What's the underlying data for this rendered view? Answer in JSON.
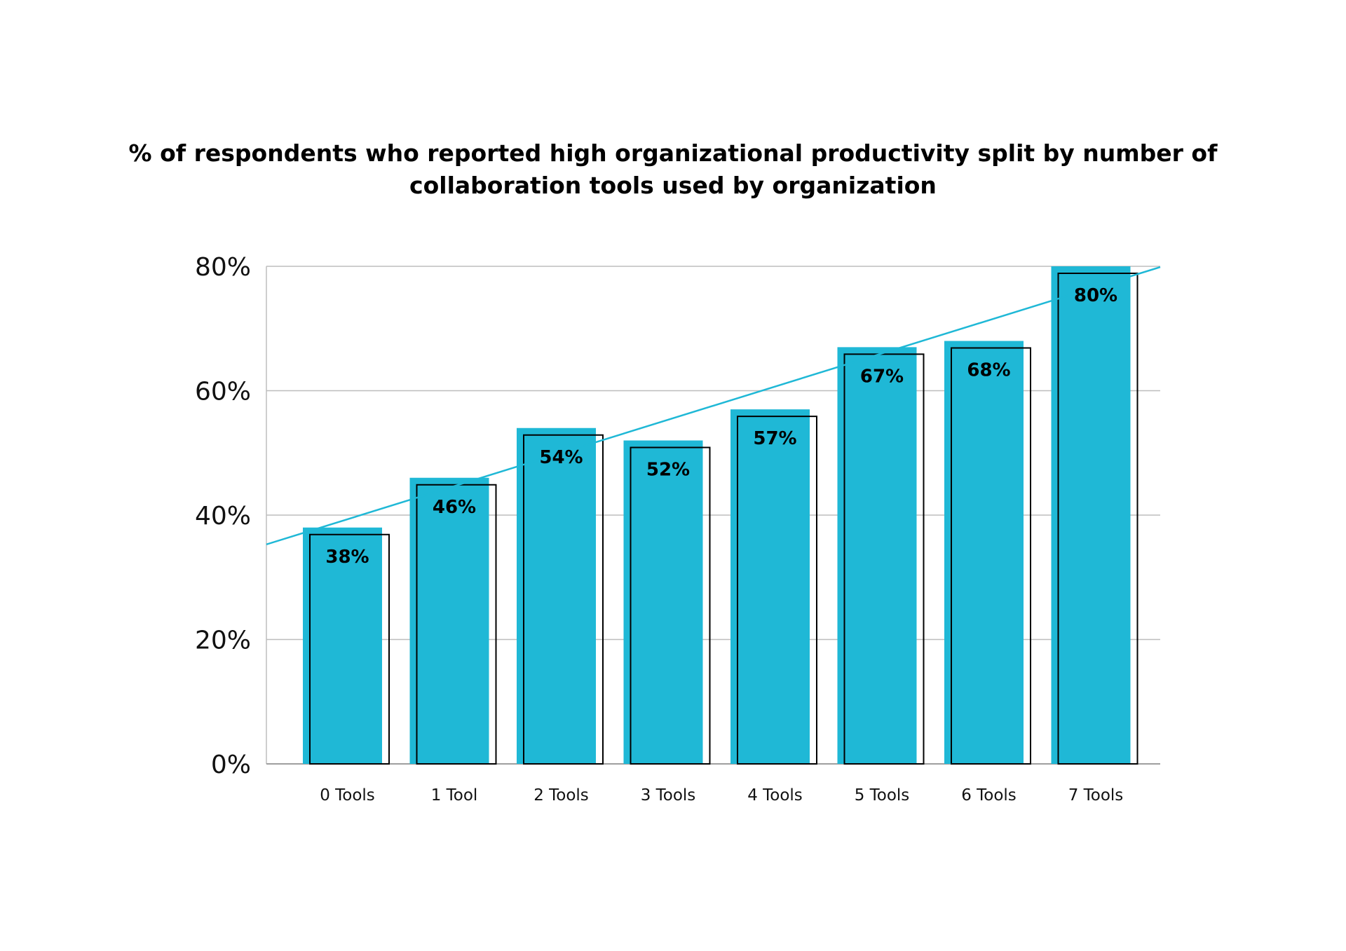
{
  "chart_data": {
    "type": "bar",
    "title": "% of respondents who reported high organizational productivity split by number of collaboration tools used by organization",
    "categories": [
      "0 Tools",
      "1 Tool",
      "2 Tools",
      "3 Tools",
      "4 Tools",
      "5 Tools",
      "6 Tools",
      "7 Tools"
    ],
    "values": [
      38,
      46,
      54,
      52,
      57,
      67,
      68,
      80
    ],
    "data_labels": [
      "38%",
      "46%",
      "54%",
      "52%",
      "57%",
      "67%",
      "68%",
      "80%"
    ],
    "y_ticks": [
      0,
      20,
      40,
      60,
      80
    ],
    "y_tick_labels": [
      "0%",
      "20%",
      "40%",
      "60%",
      "80%"
    ],
    "ylim": [
      0,
      80
    ],
    "grid": true,
    "legend": "none",
    "trendline": true,
    "colors": {
      "bar": "#1fb8d6",
      "outline": "#000000",
      "trendline": "#1fb8d6",
      "grid": "#bdbdbd"
    }
  }
}
